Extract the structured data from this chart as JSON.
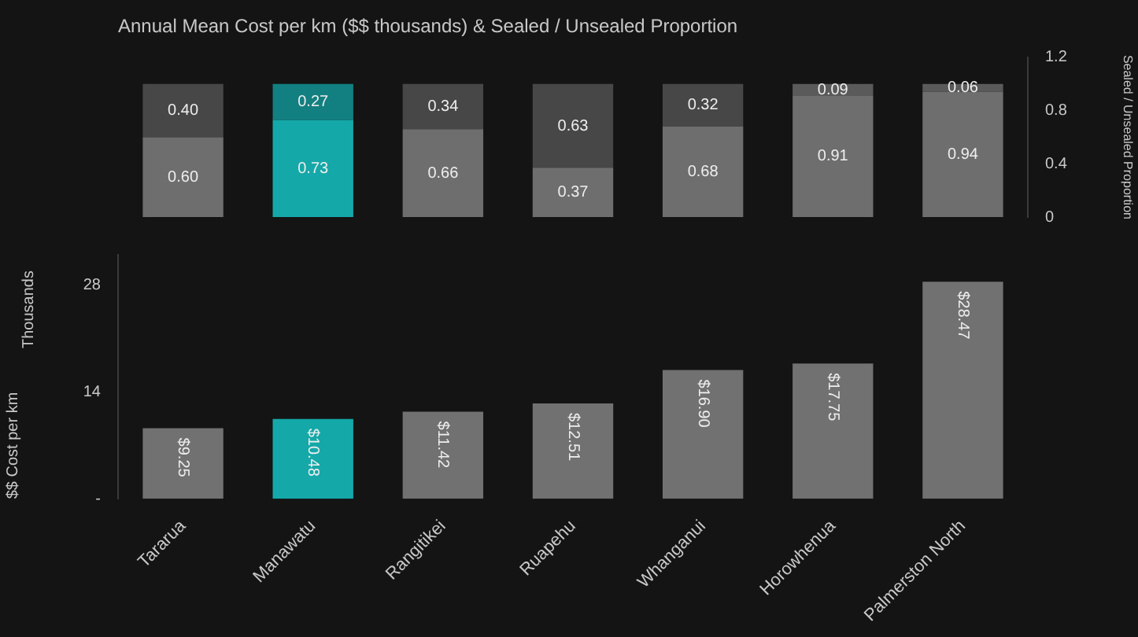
{
  "chart_data": [
    {
      "type": "bar",
      "title": "Annual Mean Cost per km ($$ thousands) & Sealed / Unsealed Proportion",
      "categories": [
        null,
        null,
        null,
        null,
        null,
        null,
        null
      ],
      "stacked": true,
      "tick_labels": "y",
      "ylabel": "Sealed / Unsealed Proportion",
      "ylim": [
        0,
        1.2
      ],
      "yticks": [
        0,
        0.4,
        0.8,
        1.2
      ],
      "series": [
        {
          "values": [
            0.6,
            0.73,
            0.66,
            0.37,
            0.68,
            0.91,
            0.94
          ],
          "colors": [
            "#6e6e6e",
            "#15a8a8",
            "#6e6e6e",
            "#6e6e6e",
            "#6e6e6e",
            "#6e6e6e",
            "#6e6e6e"
          ],
          "value_labels": [
            "0.60",
            "0.73",
            "0.66",
            "0.37",
            "0.68",
            "0.91",
            "0.94"
          ]
        },
        {
          "values": [
            0.4,
            0.27,
            0.34,
            0.63,
            0.32,
            0.09,
            0.06
          ],
          "colors": [
            "#474747",
            "#127f80",
            "#474747",
            "#474747",
            "#474747",
            "#5a5a5a",
            "#5a5a5a"
          ],
          "value_labels": [
            "0.40",
            "0.27",
            "0.34",
            "0.63",
            "0.32",
            "0.09",
            "0.06"
          ]
        }
      ]
    },
    {
      "type": "bar",
      "categories": [
        "Tararua",
        "Manawatu",
        "Rangitikei",
        "Ruapehu",
        "Whanganui",
        "Horowhenua",
        "Palmerston North"
      ],
      "ylabel": "$$ Cost per km",
      "annotations": [
        "Thousands"
      ],
      "ylim": [
        0,
        32
      ],
      "yticks": [
        {
          "value": 0,
          "label": "-"
        },
        14,
        28
      ],
      "values": [
        9.25,
        10.48,
        11.42,
        12.51,
        16.9,
        17.75,
        28.47
      ],
      "colors": [
        "#717171",
        "#15a8a8",
        "#717171",
        "#717171",
        "#717171",
        "#717171",
        "#717171"
      ],
      "value_labels": [
        "$9.25",
        "$10.48",
        "$11.42",
        "$12.51",
        "$16.90",
        "$17.75",
        "$28.47"
      ]
    }
  ]
}
